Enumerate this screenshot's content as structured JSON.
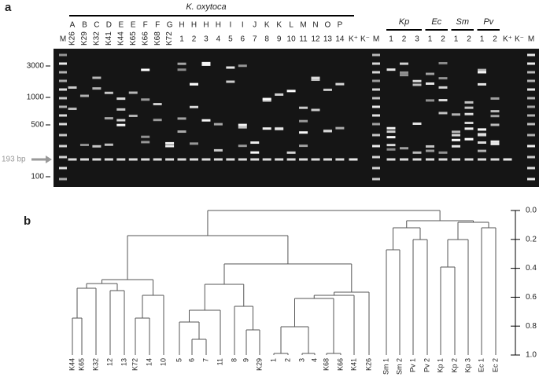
{
  "panels": [
    "a",
    "b"
  ],
  "gel": {
    "group_label": "K. oxytoca",
    "letters": [
      "A",
      "B",
      "C",
      "D",
      "E",
      "E",
      "F",
      "F",
      "G",
      "H",
      "H",
      "H",
      "H",
      "I",
      "I",
      "J",
      "K",
      "K",
      "L",
      "M",
      "N",
      "O",
      "P"
    ],
    "lanes": [
      "K26",
      "K29",
      "K32",
      "K41",
      "K44",
      "K65",
      "K66",
      "K68",
      "K72",
      "1",
      "2",
      "3",
      "4",
      "5",
      "6",
      "7",
      "8",
      "9",
      "10",
      "11",
      "12",
      "13",
      "14"
    ],
    "marker": "M",
    "controls": [
      "K⁺",
      "K⁻"
    ],
    "species": [
      {
        "label": "Kp",
        "lanes": [
          "1",
          "2",
          "3"
        ]
      },
      {
        "label": "Ec",
        "lanes": [
          "1",
          "2"
        ]
      },
      {
        "label": "Sm",
        "lanes": [
          "1",
          "2"
        ]
      },
      {
        "label": "Pv",
        "lanes": [
          "1",
          "2"
        ]
      }
    ],
    "size_labels": [
      "3000",
      "1000",
      "500",
      "100"
    ],
    "arrow_label": "193 bp"
  },
  "dendrogram": {
    "leaves": [
      "K44",
      "K65",
      "K32",
      "12",
      "13",
      "K72",
      "14",
      "10",
      "5",
      "6",
      "7",
      "11",
      "8",
      "9",
      "K29",
      "1",
      "2",
      "3",
      "4",
      "K68",
      "K66",
      "K41",
      "K26",
      "Sm 1",
      "Sm 2",
      "Pv 1",
      "Pv 2",
      "Kp 1",
      "Kp 2",
      "Kp 3",
      "Ec 1",
      "Ec 2"
    ],
    "scale_ticks": [
      {
        "value": 0,
        "label": "0.0"
      },
      {
        "value": 0.2,
        "label": "0.2"
      },
      {
        "value": 0.4,
        "label": "0.4"
      },
      {
        "value": 0.6,
        "label": "0.6"
      },
      {
        "value": 0.8,
        "label": "0.8"
      },
      {
        "value": 1,
        "label": "1.0"
      }
    ]
  }
}
